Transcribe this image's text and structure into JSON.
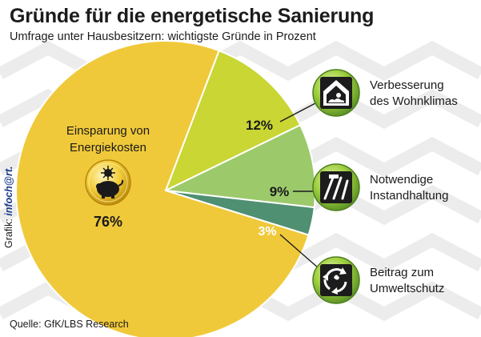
{
  "header": {
    "title": "Gründe für die energetische Sanierung",
    "subtitle": "Umfrage unter Hausbesitzern: wichtigste Gründe in Prozent"
  },
  "chart_data": {
    "type": "pie",
    "title": "Gründe für die energetische Sanierung",
    "subtitle": "Umfrage unter Hausbesitzern: wichtigste Gründe in Prozent",
    "unit": "%",
    "slices": [
      {
        "label": "Einsparung von Energiekosten",
        "label_lines": [
          "Einsparung von",
          "Energiekosten"
        ],
        "value": 76,
        "value_label": "76%",
        "color": "#f0c93a",
        "icon": "piggy-bank-icon"
      },
      {
        "label": "Verbesserung des Wohnklimas",
        "label_lines": [
          "Verbesserung",
          "des Wohnklimas"
        ],
        "value": 12,
        "value_label": "12%",
        "color": "#c9d634",
        "icon": "house-climate-icon"
      },
      {
        "label": "Notwendige Instandhaltung",
        "label_lines": [
          "Notwendige",
          "Instandhaltung"
        ],
        "value": 9,
        "value_label": "9%",
        "color": "#9cc96a",
        "icon": "tools-icon"
      },
      {
        "label": "Beitrag zum Umweltschutz",
        "label_lines": [
          "Beitrag zum",
          "Umweltschutz"
        ],
        "value": 3,
        "value_label": "3%",
        "color": "#4f8f72",
        "icon": "recycle-icon"
      }
    ]
  },
  "footer": {
    "credit_prefix": "Grafik:",
    "credit_brand": "infoch@rt.",
    "source": "Quelle: GfK/LBS Research"
  }
}
